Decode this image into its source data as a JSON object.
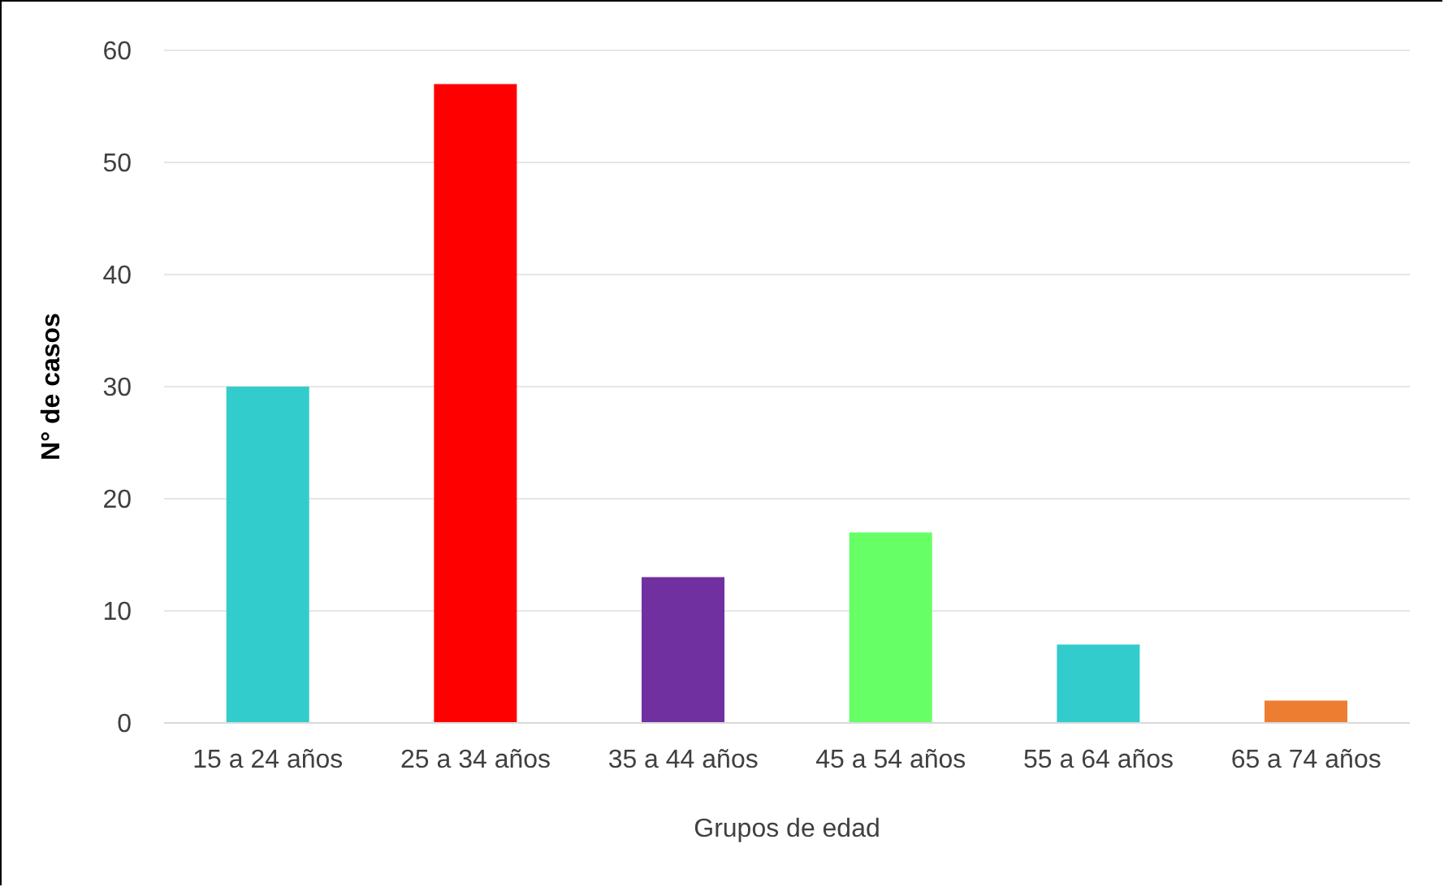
{
  "chart_data": {
    "type": "bar",
    "xlabel": "Grupos de edad",
    "ylabel": "N° de casos",
    "categories": [
      "15 a 24 años",
      "25 a 34 años",
      "35 a 44 años",
      "45 a 54 años",
      "55 a 64 años",
      "65 a 74 años"
    ],
    "values": [
      30,
      57,
      13,
      17,
      7,
      2
    ],
    "colors": [
      "#33cccc",
      "#ff0000",
      "#7030a0",
      "#66ff66",
      "#33cccc",
      "#ed7d31"
    ],
    "ylim": [
      0,
      60
    ],
    "yticks": [
      0,
      10,
      20,
      30,
      40,
      50,
      60
    ],
    "grid": "y",
    "legend": false
  }
}
